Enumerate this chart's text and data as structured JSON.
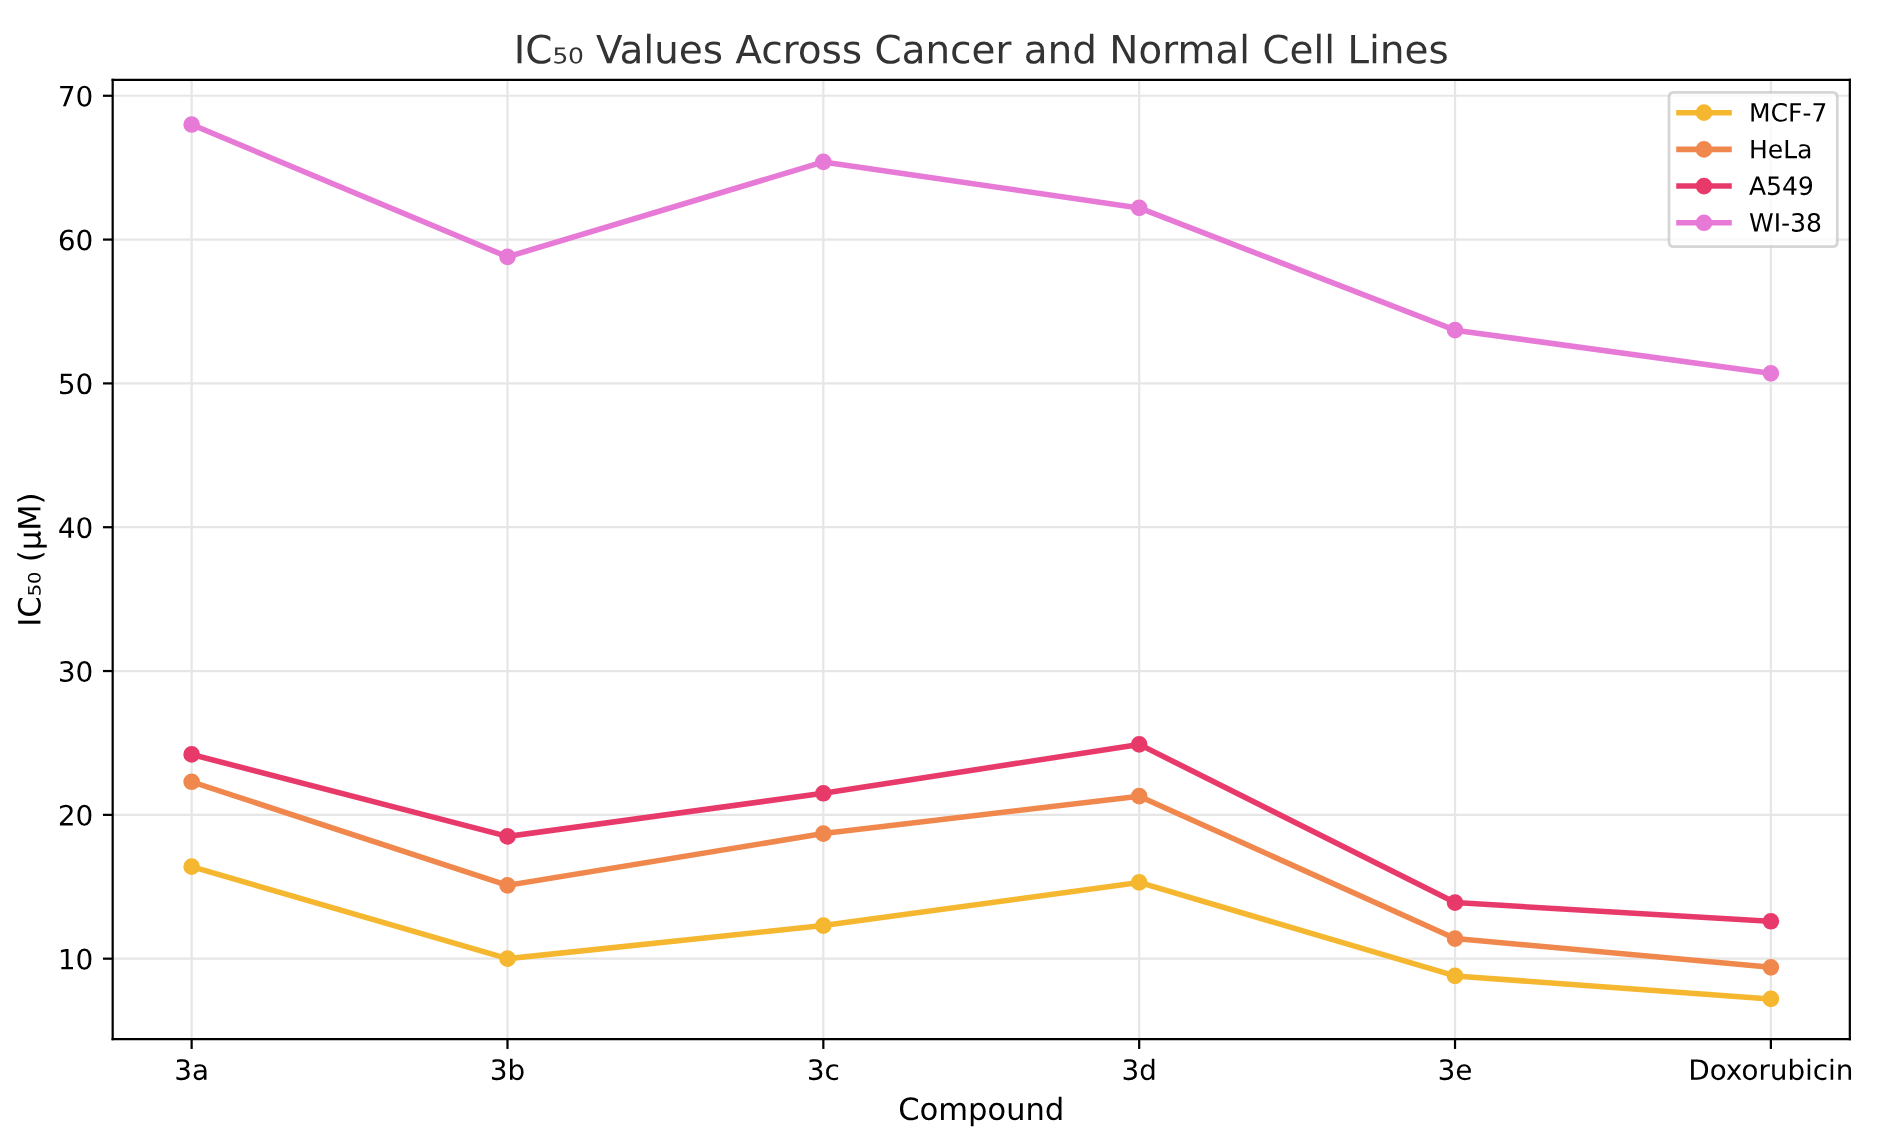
{
  "chart_data": {
    "type": "line",
    "title": "IC₅₀ Values Across Cancer and Normal Cell Lines",
    "xlabel": "Compound",
    "ylabel": "IC₅₀ (μM)",
    "categories": [
      "3a",
      "3b",
      "3c",
      "3d",
      "3e",
      "Doxorubicin"
    ],
    "series": [
      {
        "name": "MCF-7",
        "color": "#f5b730",
        "values": [
          16.4,
          10.0,
          12.3,
          15.3,
          8.8,
          7.2
        ]
      },
      {
        "name": "HeLa",
        "color": "#f0884e",
        "values": [
          22.3,
          15.1,
          18.7,
          21.3,
          11.4,
          9.4
        ]
      },
      {
        "name": "A549",
        "color": "#e83a6a",
        "values": [
          24.2,
          18.5,
          21.5,
          24.9,
          13.9,
          12.6
        ]
      },
      {
        "name": "WI-38",
        "color": "#e77ad6",
        "values": [
          68.0,
          58.8,
          65.4,
          62.2,
          53.7,
          50.7
        ]
      }
    ],
    "ylim": [
      4.4,
      71.1
    ],
    "yticks": [
      10,
      20,
      30,
      40,
      50,
      60,
      70
    ],
    "grid": true,
    "legend": "top right",
    "marker": "circle",
    "line_style": "solid"
  }
}
